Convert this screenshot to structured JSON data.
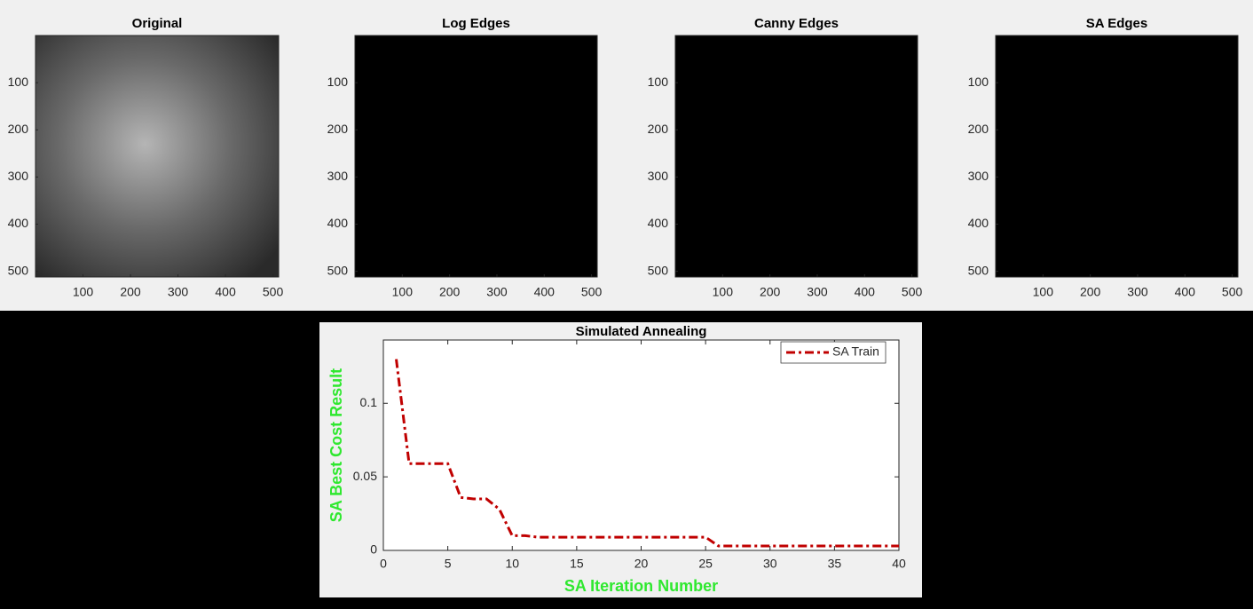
{
  "chart_data": [
    {
      "type": "image",
      "title": "Original",
      "color": "#6a6a6a",
      "xlim": [
        0,
        512
      ],
      "ylim": [
        0,
        512
      ],
      "y_direction": "reverse",
      "xticks": [
        100,
        200,
        300,
        400,
        500
      ],
      "yticks": [
        100,
        200,
        300,
        400,
        500
      ]
    },
    {
      "type": "image",
      "title": "Log Edges",
      "color": "#000000",
      "xlim": [
        0,
        512
      ],
      "ylim": [
        0,
        512
      ],
      "y_direction": "reverse",
      "xticks": [
        100,
        200,
        300,
        400,
        500
      ],
      "yticks": [
        100,
        200,
        300,
        400,
        500
      ]
    },
    {
      "type": "image",
      "title": "Canny Edges",
      "color": "#000000",
      "xlim": [
        0,
        512
      ],
      "ylim": [
        0,
        512
      ],
      "y_direction": "reverse",
      "xticks": [
        100,
        200,
        300,
        400,
        500
      ],
      "yticks": [
        100,
        200,
        300,
        400,
        500
      ]
    },
    {
      "type": "image",
      "title": "SA Edges",
      "color": "#000000",
      "xlim": [
        0,
        512
      ],
      "ylim": [
        0,
        512
      ],
      "y_direction": "reverse",
      "xticks": [
        100,
        200,
        300,
        400,
        500
      ],
      "yticks": [
        100,
        200,
        300,
        400,
        500
      ]
    },
    {
      "type": "line",
      "title": "Simulated Annealing",
      "xlabel": "SA Iteration Number",
      "ylabel": "SA Best Cost Result",
      "x": [
        1,
        2,
        3,
        4,
        5,
        6,
        7,
        8,
        9,
        10,
        11,
        12,
        13,
        14,
        15,
        16,
        17,
        18,
        19,
        20,
        21,
        22,
        23,
        24,
        25,
        26,
        27,
        28,
        29,
        30,
        31,
        32,
        33,
        34,
        35,
        36,
        37,
        38,
        39,
        40
      ],
      "series": [
        {
          "name": "SA Train",
          "color": "#c00000",
          "values": [
            0.13,
            0.059,
            0.059,
            0.059,
            0.059,
            0.036,
            0.035,
            0.035,
            0.028,
            0.01,
            0.01,
            0.009,
            0.009,
            0.009,
            0.009,
            0.009,
            0.009,
            0.009,
            0.009,
            0.009,
            0.009,
            0.009,
            0.009,
            0.009,
            0.009,
            0.003,
            0.003,
            0.003,
            0.003,
            0.003,
            0.003,
            0.003,
            0.003,
            0.003,
            0.003,
            0.003,
            0.003,
            0.003,
            0.003,
            0.003
          ]
        }
      ],
      "xlim": [
        0,
        40
      ],
      "ylim": [
        0,
        0.143
      ],
      "xticks": [
        0,
        5,
        10,
        15,
        20,
        25,
        30,
        35,
        40
      ],
      "yticks": [
        0,
        0.05,
        0.1
      ],
      "legend": "top-right"
    }
  ]
}
